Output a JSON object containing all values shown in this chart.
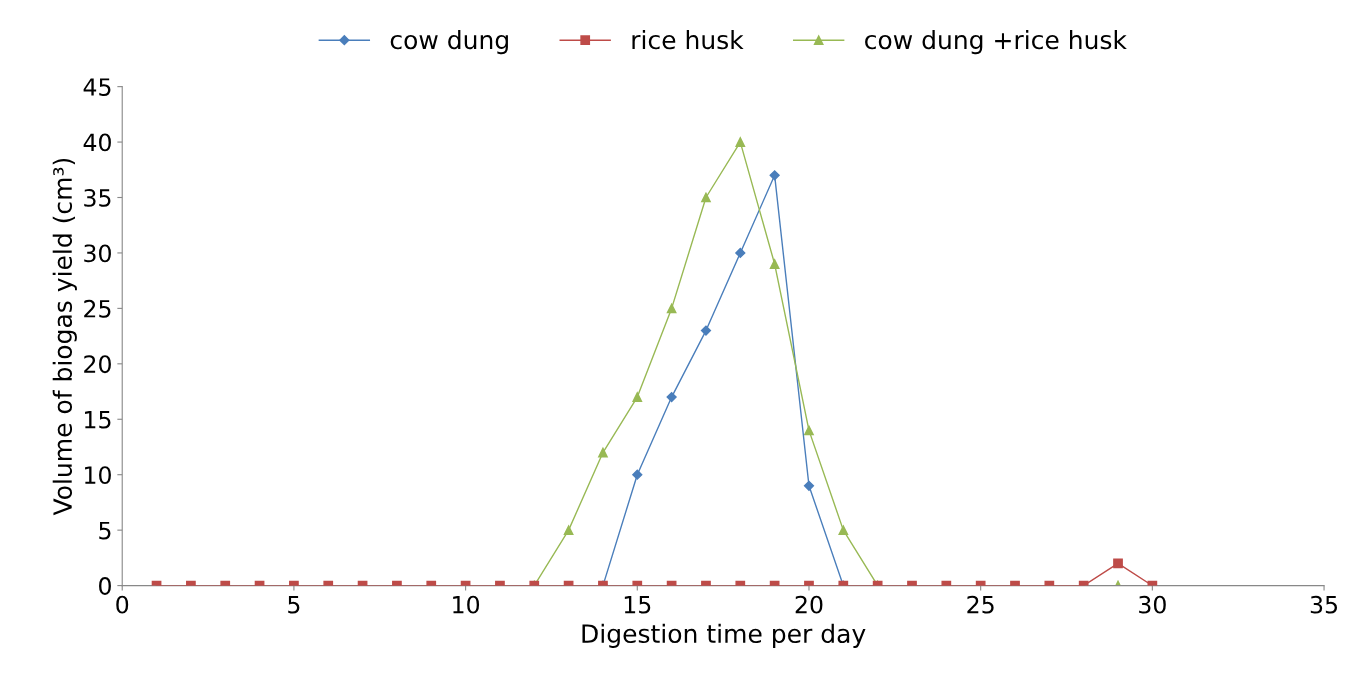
{
  "chart_data": {
    "type": "line",
    "xlabel": "Digestion time per day",
    "ylabel": "Volume of biogas yield (cm³)",
    "xlim": [
      0,
      35
    ],
    "xticks": [
      0,
      5,
      10,
      15,
      20,
      25,
      30,
      35
    ],
    "ylim": [
      0,
      45
    ],
    "yticks": [
      0,
      5,
      10,
      15,
      20,
      25,
      30,
      35,
      40,
      45
    ],
    "x": [
      1,
      2,
      3,
      4,
      5,
      6,
      7,
      8,
      9,
      10,
      11,
      12,
      13,
      14,
      15,
      16,
      17,
      18,
      19,
      20,
      21,
      22,
      23,
      24,
      25,
      26,
      27,
      28,
      29,
      30
    ],
    "grid": false,
    "legend": "top",
    "series": [
      {
        "name": "cow dung",
        "color": "#4a7ebb",
        "marker": "diamond",
        "values": [
          null,
          null,
          null,
          null,
          null,
          null,
          null,
          null,
          null,
          null,
          null,
          null,
          null,
          0,
          10,
          17,
          23,
          30,
          37,
          9,
          0,
          null,
          null,
          null,
          null,
          null,
          null,
          null,
          null,
          null
        ]
      },
      {
        "name": "rice husk",
        "color": "#be4b48",
        "marker": "square",
        "values": [
          0,
          0,
          0,
          0,
          0,
          0,
          0,
          0,
          0,
          0,
          0,
          0,
          0,
          0,
          0,
          0,
          0,
          0,
          0,
          0,
          0,
          0,
          0,
          0,
          0,
          0,
          0,
          0,
          2,
          0
        ]
      },
      {
        "name": "cow dung +rice husk",
        "color": "#98b954",
        "marker": "triangle",
        "values": [
          null,
          null,
          null,
          null,
          null,
          null,
          null,
          null,
          null,
          null,
          null,
          0,
          5,
          12,
          17,
          25,
          35,
          40,
          29,
          14,
          5,
          0,
          null,
          null,
          null,
          null,
          null,
          null,
          0,
          null
        ]
      }
    ]
  }
}
